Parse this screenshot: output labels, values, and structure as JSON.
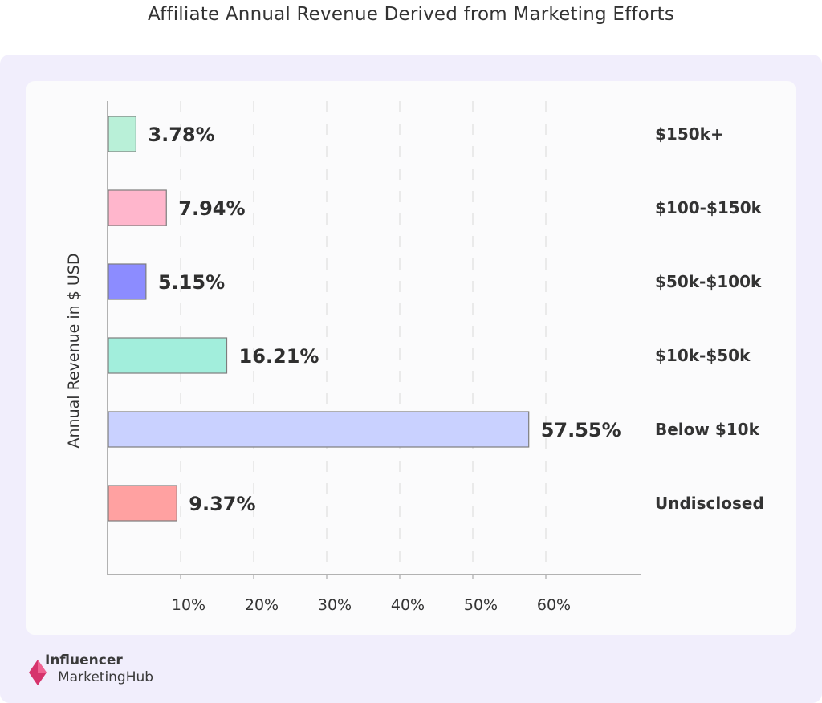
{
  "chart_data": {
    "type": "bar",
    "orientation": "horizontal",
    "title": "Affiliate Annual Revenue Derived from Marketing Efforts",
    "xlabel": "",
    "ylabel": "Annual Revenue in $ USD",
    "xlim": [
      0,
      73
    ],
    "x_ticks": [
      "10%",
      "20%",
      "30%",
      "40%",
      "50%",
      "60%"
    ],
    "x_tick_values": [
      10,
      20,
      30,
      40,
      50,
      60
    ],
    "categories": [
      "$150k+",
      "$100-$150k",
      "$50k-$100k",
      "$10k-$50k",
      "Below $10k",
      "Undisclosed"
    ],
    "values": [
      3.78,
      7.94,
      5.15,
      16.21,
      57.55,
      9.37
    ],
    "data_labels": [
      "3.78%",
      "7.94%",
      "5.15%",
      "16.21%",
      "57.55%",
      "9.37%"
    ],
    "colors": [
      "#b9f0d8",
      "#ffb6cc",
      "#8c8cff",
      "#a2eedc",
      "#c9d1ff",
      "#ffa1a1"
    ],
    "grid": true
  },
  "brand": {
    "line1": "Influencer",
    "line2": "MarketingHub",
    "accent": "#d6336c"
  }
}
